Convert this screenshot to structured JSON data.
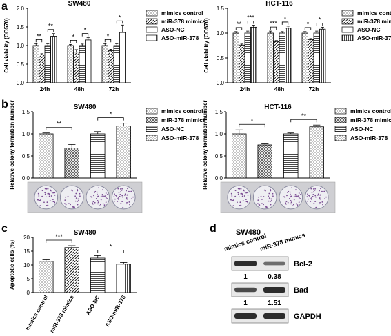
{
  "panel_letters": [
    "a",
    "b",
    "c",
    "d"
  ],
  "legend_4": [
    "mimics control",
    "miR-378 mimics",
    "ASO-NC",
    "ASO-miR-378"
  ],
  "chart_data": [
    {
      "id": "a1",
      "type": "bar",
      "title": "SW480",
      "ylabel": "Cell viability (OD570)",
      "ylim": [
        0,
        2.0
      ],
      "yticks": [
        "0.0",
        "0.5",
        "1.0",
        "1.5",
        "2.0"
      ],
      "categories": [
        "24h",
        "48h",
        "72h"
      ],
      "series": [
        {
          "name": "mimics control",
          "values": [
            1.0,
            1.0,
            1.0
          ],
          "errors": [
            0.05,
            0.03,
            0.05
          ]
        },
        {
          "name": "miR-378 mimics",
          "values": [
            0.75,
            0.82,
            0.86
          ],
          "errors": [
            0.03,
            0.07,
            0.04
          ]
        },
        {
          "name": "ASO-NC",
          "values": [
            1.0,
            1.0,
            1.0
          ],
          "errors": [
            0.05,
            0.04,
            0.05
          ]
        },
        {
          "name": "ASO-miR-378",
          "values": [
            1.25,
            1.15,
            1.35
          ],
          "errors": [
            0.07,
            0.06,
            0.2
          ]
        }
      ],
      "significance": [
        [
          "**",
          "**"
        ],
        [
          "*",
          "*"
        ],
        [
          "*",
          "*"
        ]
      ]
    },
    {
      "id": "a2",
      "type": "bar",
      "title": "HCT-116",
      "ylabel": "Cell viability (OD570)",
      "ylim": [
        0,
        1.5
      ],
      "yticks": [
        "0.0",
        "0.5",
        "1.0",
        "1.5"
      ],
      "categories": [
        "24h",
        "48h",
        "72h"
      ],
      "series": [
        {
          "name": "mimics control",
          "values": [
            1.0,
            1.0,
            1.0
          ],
          "errors": [
            0.03,
            0.04,
            0.03
          ]
        },
        {
          "name": "miR-378 mimics",
          "values": [
            0.76,
            0.83,
            0.87
          ],
          "errors": [
            0.02,
            0.02,
            0.02
          ]
        },
        {
          "name": "ASO-NC",
          "values": [
            1.0,
            1.0,
            1.0
          ],
          "errors": [
            0.04,
            0.03,
            0.04
          ]
        },
        {
          "name": "ASO-miR-378",
          "values": [
            1.12,
            1.1,
            1.08
          ],
          "errors": [
            0.04,
            0.04,
            0.04
          ]
        }
      ],
      "significance": [
        [
          "**",
          "***"
        ],
        [
          "***",
          "*"
        ],
        [
          "*",
          "*"
        ]
      ]
    },
    {
      "id": "b1",
      "type": "bar",
      "title": "SW480",
      "ylabel": "Relative colony formation number",
      "ylim": [
        0,
        1.5
      ],
      "yticks": [
        "0.0",
        "0.5",
        "1.0",
        "1.5"
      ],
      "categories": [
        "mimics control",
        "miR-378 mimics",
        "ASO-NC",
        "ASO-miR-378"
      ],
      "values": [
        1.0,
        0.68,
        1.0,
        1.18
      ],
      "errors": [
        0.02,
        0.08,
        0.05,
        0.06
      ],
      "significance": [
        "**",
        "*"
      ]
    },
    {
      "id": "b2",
      "type": "bar",
      "title": "HCT-116",
      "ylabel": "Relative colony formation number",
      "ylim": [
        0,
        1.5
      ],
      "yticks": [
        "0.0",
        "0.5",
        "1.0",
        "1.5"
      ],
      "categories": [
        "mimics control",
        "miR-378 mimics",
        "ASO-NC",
        "ASO-miR-378"
      ],
      "values": [
        1.0,
        0.75,
        1.0,
        1.16
      ],
      "errors": [
        0.09,
        0.04,
        0.02,
        0.04
      ],
      "significance": [
        "*",
        "**"
      ]
    },
    {
      "id": "c",
      "type": "bar",
      "title": "SW480",
      "ylabel": "Apoptotic cells (%)",
      "ylim": [
        0,
        20
      ],
      "yticks": [
        "0",
        "5",
        "10",
        "15",
        "20"
      ],
      "categories": [
        "mimics control",
        "miR-378 mimics",
        "ASO-NC",
        "ASO-miR-378"
      ],
      "values": [
        11.3,
        16.3,
        12.5,
        10.3
      ],
      "errors": [
        0.6,
        0.7,
        0.9,
        0.6
      ],
      "significance": [
        "***",
        "*"
      ]
    }
  ],
  "western": {
    "title": "SW480",
    "lanes": [
      "mimics control",
      "miR-378 mimics"
    ],
    "rows": [
      {
        "label": "Bcl-2",
        "values": [
          "1",
          "0.38"
        ],
        "intensity": [
          1.0,
          0.45
        ]
      },
      {
        "label": "Bad",
        "values": [
          "1",
          "1.51"
        ],
        "intensity": [
          0.75,
          1.0
        ]
      },
      {
        "label": "GAPDH",
        "values": [],
        "intensity": [
          1.0,
          1.0
        ]
      }
    ]
  },
  "colors": {
    "bar_edge": "#000000",
    "band": "#222222",
    "blot_bg": "#e8e8e8",
    "colony": "#7a4c93"
  }
}
